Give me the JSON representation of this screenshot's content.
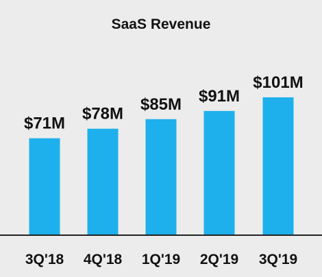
{
  "chart_data": {
    "type": "bar",
    "title": "SaaS Revenue",
    "xlabel": "",
    "ylabel": "",
    "categories": [
      "3Q'18",
      "4Q'18",
      "1Q'19",
      "2Q'19",
      "3Q'19"
    ],
    "values": [
      71,
      78,
      85,
      91,
      101
    ],
    "data_labels": [
      "$71M",
      "$78M",
      "$85M",
      "$91M",
      "$101M"
    ],
    "unit": "$M",
    "ylim": [
      0,
      108
    ],
    "grid": false,
    "legend": "none",
    "bar_color": "#1eb0ec",
    "axis_color": "#222222",
    "background_color": "#ececec"
  }
}
